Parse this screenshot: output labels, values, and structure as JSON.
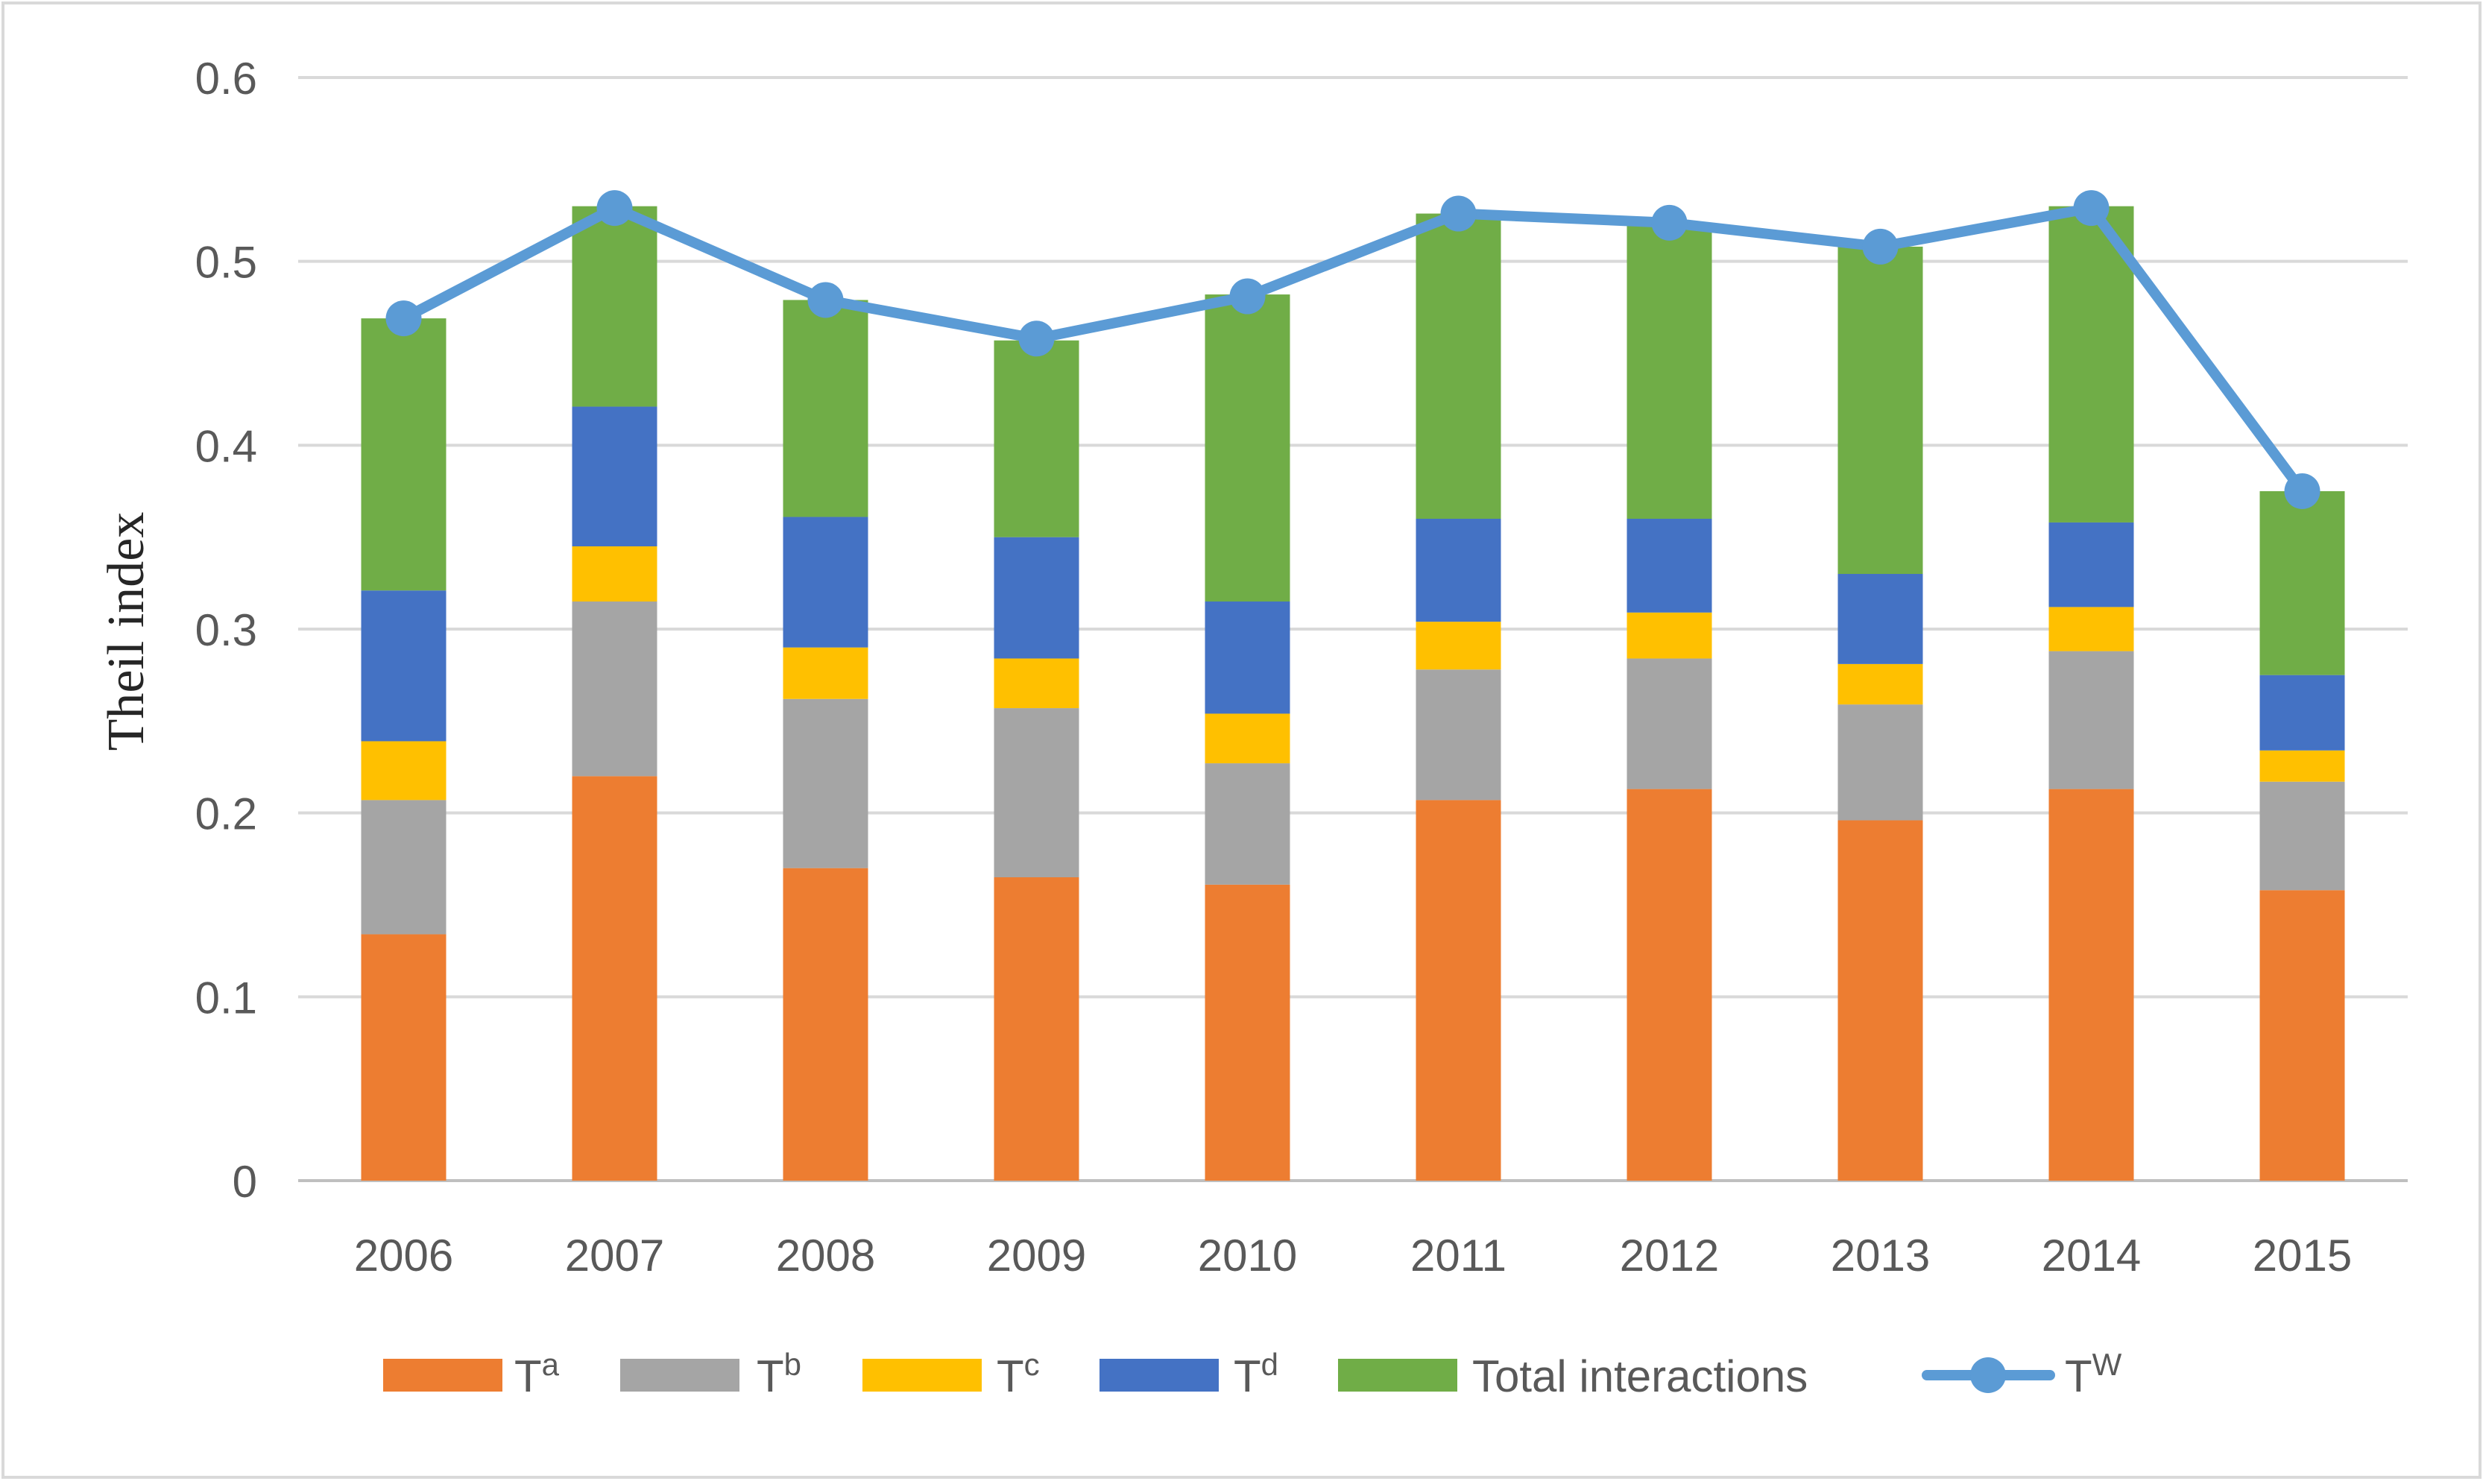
{
  "chart_data": {
    "type": "bar",
    "stacked": true,
    "title": "",
    "xlabel": "",
    "ylabel": "Theil index",
    "ylim": [
      0,
      0.6
    ],
    "yticks": [
      "0",
      "0.1",
      "0.2",
      "0.3",
      "0.4",
      "0.5",
      "0.6"
    ],
    "grid": true,
    "legend_position": "bottom",
    "categories": [
      "2006",
      "2007",
      "2008",
      "2009",
      "2010",
      "2011",
      "2012",
      "2013",
      "2014",
      "2015"
    ],
    "series": [
      {
        "name": "T",
        "sup": "a",
        "kind": "bar",
        "color": "#ED7D31",
        "values": [
          0.134,
          0.22,
          0.17,
          0.165,
          0.161,
          0.207,
          0.213,
          0.196,
          0.213,
          0.158
        ]
      },
      {
        "name": "T",
        "sup": "b",
        "kind": "bar",
        "color": "#A5A5A5",
        "values": [
          0.073,
          0.095,
          0.092,
          0.092,
          0.066,
          0.071,
          0.071,
          0.063,
          0.075,
          0.059
        ]
      },
      {
        "name": "T",
        "sup": "c",
        "kind": "bar",
        "color": "#FFC000",
        "values": [
          0.032,
          0.03,
          0.028,
          0.027,
          0.027,
          0.026,
          0.025,
          0.022,
          0.024,
          0.017
        ]
      },
      {
        "name": "T",
        "sup": "d",
        "kind": "bar",
        "color": "#4472C4",
        "values": [
          0.082,
          0.076,
          0.071,
          0.066,
          0.061,
          0.056,
          0.051,
          0.049,
          0.046,
          0.041
        ]
      },
      {
        "name": "Total interactions",
        "sup": "",
        "kind": "bar",
        "color": "#70AD47",
        "values": [
          0.148,
          0.109,
          0.118,
          0.107,
          0.167,
          0.166,
          0.16,
          0.178,
          0.172,
          0.1
        ]
      },
      {
        "name": "T",
        "sup": "W",
        "kind": "line",
        "color": "#5B9BD5",
        "values": [
          0.469,
          0.529,
          0.479,
          0.458,
          0.481,
          0.526,
          0.521,
          0.508,
          0.529,
          0.375
        ]
      }
    ]
  }
}
